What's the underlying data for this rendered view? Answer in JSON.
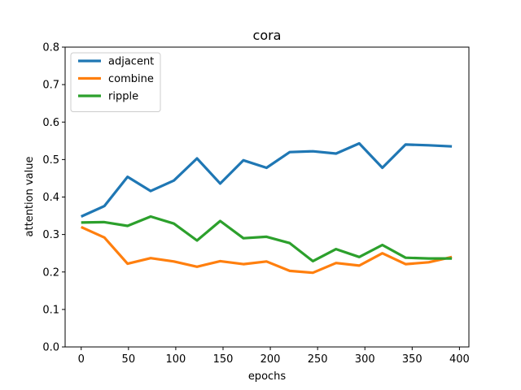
{
  "chart_data": {
    "type": "line",
    "title": "cora",
    "xlabel": "epochs",
    "ylabel": "attention value",
    "xlim": [
      -17,
      410
    ],
    "ylim": [
      0,
      0.8
    ],
    "xticks": [
      0,
      50,
      100,
      150,
      200,
      250,
      300,
      350,
      400
    ],
    "yticks": [
      0.0,
      0.1,
      0.2,
      0.3,
      0.4,
      0.5,
      0.6,
      0.7,
      0.8
    ],
    "xtick_labels": [
      "0",
      "50",
      "100",
      "150",
      "200",
      "250",
      "300",
      "350",
      "400"
    ],
    "ytick_labels": [
      "0.0",
      "0.1",
      "0.2",
      "0.3",
      "0.4",
      "0.5",
      "0.6",
      "0.7",
      "0.8"
    ],
    "grid": false,
    "legend_position": "upper-left",
    "x": [
      0,
      24.5,
      49,
      73.5,
      98,
      122.5,
      147,
      171.5,
      196,
      220.5,
      245,
      269.5,
      294,
      318.5,
      343,
      367.5,
      392
    ],
    "series": [
      {
        "name": "adjacent",
        "color": "#1f77b4",
        "values": [
          0.348,
          0.376,
          0.454,
          0.416,
          0.444,
          0.503,
          0.436,
          0.498,
          0.478,
          0.52,
          0.522,
          0.516,
          0.543,
          0.478,
          0.54,
          0.538,
          0.535
        ]
      },
      {
        "name": "combine",
        "color": "#ff7f0e",
        "values": [
          0.32,
          0.292,
          0.222,
          0.237,
          0.228,
          0.214,
          0.229,
          0.221,
          0.228,
          0.203,
          0.198,
          0.224,
          0.217,
          0.25,
          0.221,
          0.226,
          0.24
        ]
      },
      {
        "name": "ripple",
        "color": "#2ca02c",
        "values": [
          0.332,
          0.333,
          0.323,
          0.348,
          0.329,
          0.284,
          0.336,
          0.29,
          0.294,
          0.277,
          0.229,
          0.261,
          0.24,
          0.272,
          0.238,
          0.236,
          0.236
        ]
      }
    ]
  }
}
